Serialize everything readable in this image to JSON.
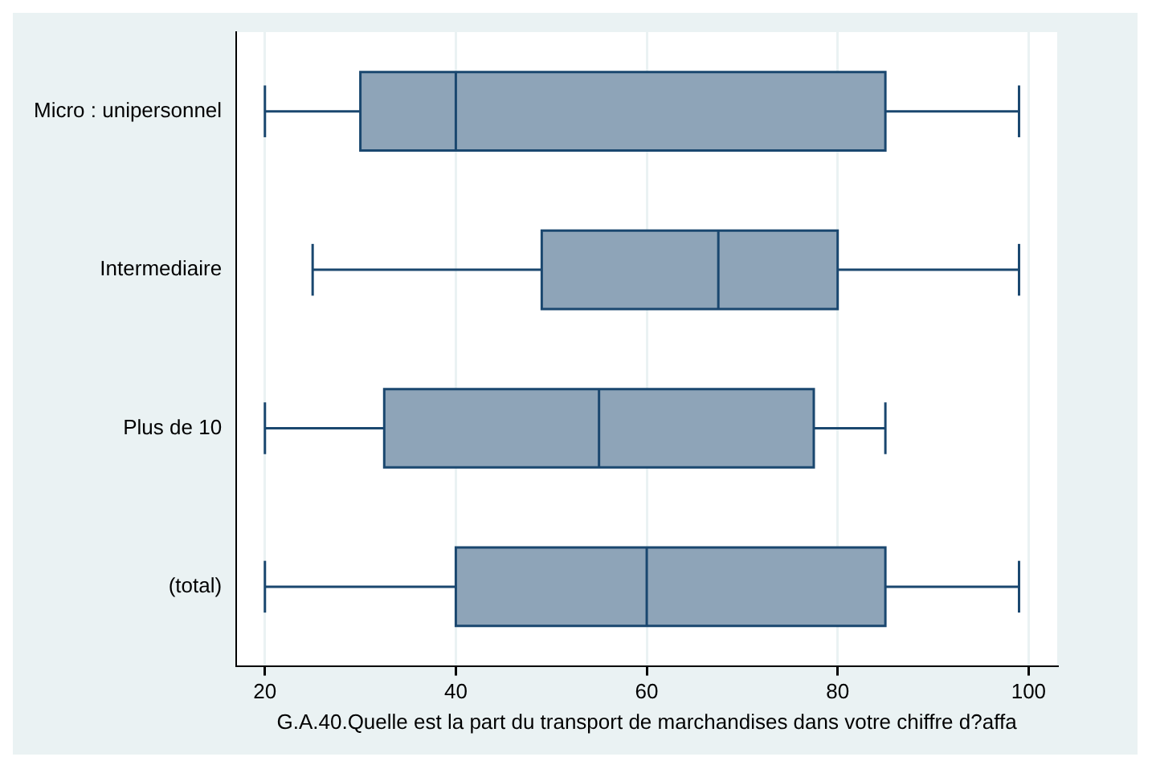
{
  "chart_data": {
    "type": "box",
    "orientation": "horizontal",
    "categories": [
      "Micro : unipersonnel",
      "Intermediaire",
      "Plus de 10",
      "(total)"
    ],
    "xlabel": "G.A.40.Quelle est la part du transport de marchandises dans votre chiffre d?affa",
    "color": "#8ea4b8",
    "boxes": [
      {
        "low": 20,
        "q1": 30,
        "median": 40,
        "q3": 85,
        "high": 99
      },
      {
        "low": 25,
        "q1": 49,
        "median": 67.5,
        "q3": 80,
        "high": 99
      },
      {
        "low": 20,
        "q1": 32.5,
        "median": 55,
        "q3": 77.5,
        "high": 85
      },
      {
        "low": 20,
        "q1": 40,
        "median": 60,
        "q3": 85,
        "high": 99
      }
    ],
    "xlim": [
      17,
      103
    ],
    "xticks": [
      20,
      40,
      60,
      80,
      100
    ],
    "grid": "x",
    "legend": false
  }
}
